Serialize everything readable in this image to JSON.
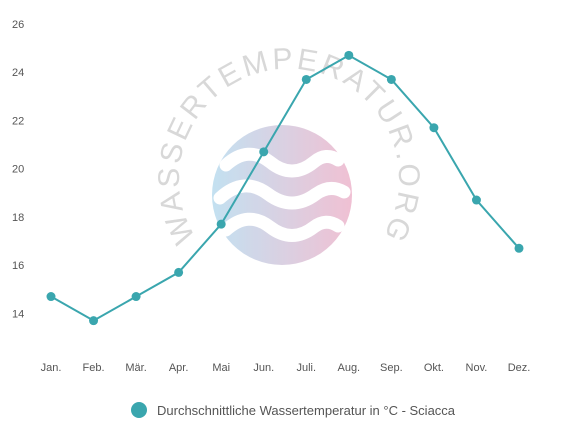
{
  "chart_data": {
    "type": "line",
    "categories": [
      "Jan.",
      "Feb.",
      "Mär.",
      "Apr.",
      "Mai",
      "Jun.",
      "Juli.",
      "Aug.",
      "Sep.",
      "Okt.",
      "Nov.",
      "Dez."
    ],
    "series": [
      {
        "name": "Durchschnittliche Wassertemperatur in °C - Sciacca",
        "values": [
          14.7,
          13.7,
          14.7,
          15.7,
          17.7,
          20.7,
          23.7,
          24.7,
          23.7,
          21.7,
          18.7,
          16.7
        ],
        "color": "#3aa6ae"
      }
    ],
    "yticks": [
      14,
      16,
      18,
      20,
      22,
      24,
      26
    ],
    "ylim": [
      12.4,
      26
    ],
    "grid": false,
    "legend_position": "bottom-center"
  },
  "watermark": {
    "text": "WASSERTEMPERATUR.ORG"
  }
}
